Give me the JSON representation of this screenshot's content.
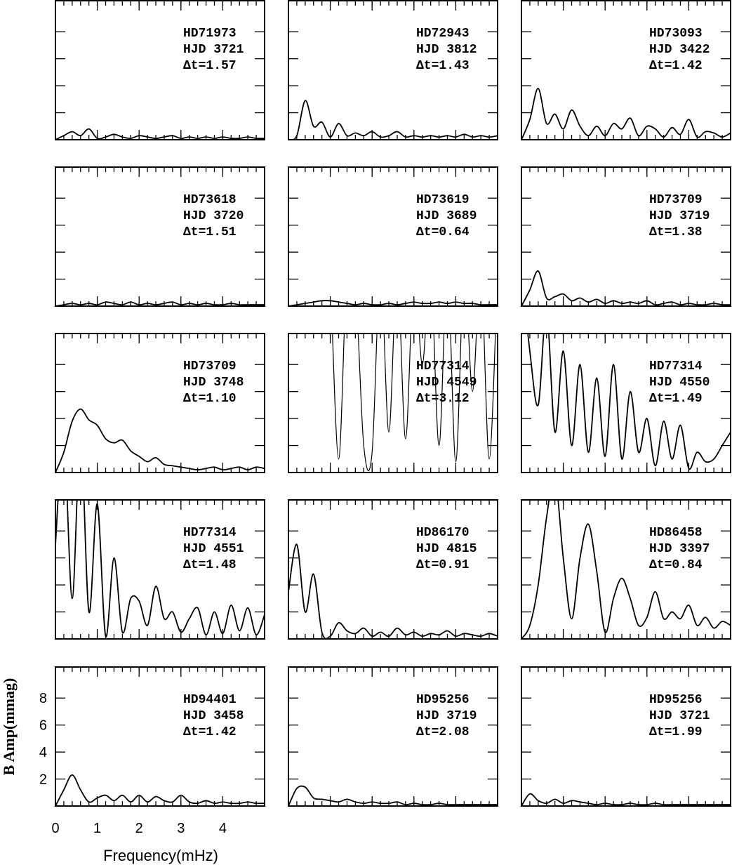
{
  "chart_data": [
    {
      "type": "line",
      "text": [
        "HD71973",
        "HJD 3721",
        "Δt=1.57"
      ],
      "xlim": [
        0,
        5
      ],
      "ylim": [
        0,
        10.3
      ],
      "x": [
        0,
        0.2,
        0.4,
        0.6,
        0.8,
        1,
        1.2,
        1.4,
        1.6,
        1.8,
        2,
        2.2,
        2.4,
        2.6,
        2.8,
        3,
        3.2,
        3.4,
        3.6,
        3.8,
        4,
        4.2,
        4.4,
        4.6,
        4.8,
        5
      ],
      "values": [
        0,
        0.3,
        0.6,
        0.3,
        0.8,
        0.1,
        0.2,
        0.4,
        0.2,
        0.1,
        0.3,
        0.2,
        0.1,
        0.2,
        0.3,
        0.1,
        0.2,
        0.1,
        0.2,
        0.1,
        0.2,
        0.1,
        0.1,
        0.2,
        0.1,
        0.1
      ]
    },
    {
      "type": "line",
      "text": [
        "HD72943",
        "HJD 3812",
        "Δt=1.43"
      ],
      "xlim": [
        0,
        5
      ],
      "ylim": [
        0,
        10.3
      ],
      "x": [
        0,
        0.2,
        0.4,
        0.6,
        0.8,
        1,
        1.2,
        1.4,
        1.6,
        1.8,
        2,
        2.2,
        2.4,
        2.6,
        2.8,
        3,
        3.2,
        3.4,
        3.6,
        3.8,
        4,
        4.2,
        4.4,
        4.6,
        4.8,
        5
      ],
      "values": [
        0,
        0.3,
        2.9,
        1.0,
        1.3,
        0.2,
        1.2,
        0.3,
        0.5,
        0.3,
        0.6,
        0.2,
        0.3,
        0.6,
        0.2,
        0.3,
        0.2,
        0.3,
        0.2,
        0.3,
        0.2,
        0.4,
        0.2,
        0.3,
        0.2,
        0.3
      ]
    },
    {
      "type": "line",
      "text": [
        "HD73093",
        "HJD 3422",
        "Δt=1.42"
      ],
      "xlim": [
        0,
        5
      ],
      "ylim": [
        0,
        10.3
      ],
      "x": [
        0,
        0.2,
        0.4,
        0.6,
        0.8,
        1,
        1.2,
        1.4,
        1.6,
        1.8,
        2,
        2.2,
        2.4,
        2.6,
        2.8,
        3,
        3.2,
        3.4,
        3.6,
        3.8,
        4,
        4.2,
        4.4,
        4.6,
        4.8,
        5
      ],
      "values": [
        0,
        1.5,
        3.8,
        1.2,
        1.9,
        0.8,
        2.2,
        1.0,
        0.3,
        1.0,
        0.3,
        1.2,
        0.8,
        1.6,
        0.3,
        1.0,
        0.8,
        0.2,
        0.9,
        0.4,
        1.5,
        0.2,
        0.6,
        0.5,
        0.2,
        0.5
      ]
    },
    {
      "type": "line",
      "text": [
        "HD73618",
        "HJD 3720",
        "Δt=1.51"
      ],
      "xlim": [
        0,
        5
      ],
      "ylim": [
        0,
        10.3
      ],
      "x": [
        0,
        0.2,
        0.4,
        0.6,
        0.8,
        1,
        1.2,
        1.4,
        1.6,
        1.8,
        2,
        2.2,
        2.4,
        2.6,
        2.8,
        3,
        3.2,
        3.4,
        3.6,
        3.8,
        4,
        4.2,
        4.4,
        4.6,
        4.8,
        5
      ],
      "values": [
        0,
        0.1,
        0.2,
        0.1,
        0.2,
        0.1,
        0.3,
        0.2,
        0.1,
        0.3,
        0.1,
        0.2,
        0.1,
        0.2,
        0.3,
        0.1,
        0.2,
        0.1,
        0.2,
        0.1,
        0.1,
        0.2,
        0.1,
        0.1,
        0.1,
        0.1
      ]
    },
    {
      "type": "line",
      "text": [
        "HD73619",
        "HJD 3689",
        "Δt=0.64"
      ],
      "xlim": [
        0,
        5
      ],
      "ylim": [
        0,
        10.3
      ],
      "x": [
        0,
        0.2,
        0.4,
        0.6,
        0.8,
        1,
        1.2,
        1.4,
        1.6,
        1.8,
        2,
        2.2,
        2.4,
        2.6,
        2.8,
        3,
        3.2,
        3.4,
        3.6,
        3.8,
        4,
        4.2,
        4.4,
        4.6,
        4.8,
        5
      ],
      "values": [
        0,
        0.1,
        0.2,
        0.3,
        0.4,
        0.4,
        0.3,
        0.2,
        0.1,
        0.2,
        0.1,
        0.1,
        0.2,
        0.1,
        0.2,
        0.3,
        0.2,
        0.2,
        0.3,
        0.2,
        0.3,
        0.2,
        0.2,
        0.1,
        0.1,
        0.1
      ]
    },
    {
      "type": "line",
      "text": [
        "HD73709",
        "HJD 3719",
        "Δt=1.38"
      ],
      "xlim": [
        0,
        5
      ],
      "ylim": [
        0,
        10.3
      ],
      "x": [
        0,
        0.2,
        0.4,
        0.6,
        0.8,
        1,
        1.2,
        1.4,
        1.6,
        1.8,
        2,
        2.2,
        2.4,
        2.6,
        2.8,
        3,
        3.2,
        3.4,
        3.6,
        3.8,
        4,
        4.2,
        4.4,
        4.6,
        4.8,
        5
      ],
      "values": [
        0,
        1.2,
        2.6,
        0.6,
        0.7,
        0.9,
        0.4,
        0.6,
        0.3,
        0.5,
        0.2,
        0.4,
        0.2,
        0.3,
        0.2,
        0.4,
        0.1,
        0.2,
        0.3,
        0.1,
        0.2,
        0.1,
        0.1,
        0.2,
        0.1,
        0.1
      ]
    },
    {
      "type": "line",
      "text": [
        "HD73709",
        "HJD 3748",
        "Δt=1.10"
      ],
      "xlim": [
        0,
        5
      ],
      "ylim": [
        0,
        10.3
      ],
      "x": [
        0,
        0.2,
        0.4,
        0.6,
        0.8,
        1,
        1.2,
        1.4,
        1.6,
        1.8,
        2,
        2.2,
        2.4,
        2.6,
        2.8,
        3,
        3.2,
        3.4,
        3.6,
        3.8,
        4,
        4.2,
        4.4,
        4.6,
        4.8,
        5
      ],
      "values": [
        0,
        1.5,
        3.8,
        4.7,
        3.9,
        3.5,
        2.5,
        2.2,
        2.4,
        1.6,
        1.2,
        0.8,
        1.1,
        0.6,
        0.5,
        0.4,
        0.3,
        0.2,
        0.3,
        0.4,
        0.2,
        0.3,
        0.4,
        0.2,
        0.4,
        0.3
      ]
    },
    {
      "type": "line",
      "text": [
        "HD77314",
        "HJD 4549",
        "Δt=3.12"
      ],
      "xlim": [
        0,
        5
      ],
      "ylim": [
        0,
        10.3
      ],
      "x": [
        0,
        0.2,
        0.4,
        0.6,
        0.8,
        1,
        1.2,
        1.4,
        1.6,
        1.8,
        2,
        2.2,
        2.4,
        2.6,
        2.8,
        3,
        3.2,
        3.4,
        3.6,
        3.8,
        4,
        4.2,
        4.4,
        4.6,
        4.8,
        5
      ],
      "values": [
        null,
        null,
        null,
        null,
        null,
        15,
        1.0,
        15,
        14,
        2,
        1.5,
        15,
        3,
        15,
        2.5,
        15,
        8,
        15,
        2,
        15,
        0.8,
        15,
        6,
        15,
        1,
        15
      ]
    },
    {
      "type": "line",
      "text": [
        "HD77314",
        "HJD 4550",
        "Δt=1.49"
      ],
      "xlim": [
        0,
        5
      ],
      "ylim": [
        0,
        10.3
      ],
      "x": [
        0,
        0.2,
        0.4,
        0.6,
        0.8,
        1,
        1.2,
        1.4,
        1.6,
        1.8,
        2,
        2.2,
        2.4,
        2.6,
        2.8,
        3,
        3.2,
        3.4,
        3.6,
        3.8,
        4,
        4.2,
        4.4,
        4.6,
        4.8,
        5
      ],
      "values": [
        15,
        9,
        5,
        12,
        3,
        9,
        2,
        8,
        1.5,
        7,
        1.2,
        8,
        1,
        6,
        1.5,
        4,
        0.5,
        3.8,
        1,
        3.5,
        0.3,
        1.5,
        0.8,
        1,
        2,
        3
      ]
    },
    {
      "type": "line",
      "text": [
        "HD77314",
        "HJD 4551",
        "Δt=1.48"
      ],
      "xlim": [
        0,
        5
      ],
      "ylim": [
        0,
        10.3
      ],
      "x": [
        0,
        0.2,
        0.4,
        0.6,
        0.8,
        1,
        1.2,
        1.4,
        1.6,
        1.8,
        2,
        2.2,
        2.4,
        2.6,
        2.8,
        3,
        3.2,
        3.4,
        3.6,
        3.8,
        4,
        4.2,
        4.4,
        4.6,
        4.8,
        5
      ],
      "values": [
        7,
        15,
        3,
        15,
        2,
        10,
        0.2,
        6,
        0.5,
        3,
        2.8,
        1,
        3.9,
        1.5,
        2,
        0.5,
        1.5,
        2.3,
        0.3,
        2,
        0.4,
        2.5,
        0.6,
        2.3,
        0.3,
        1.8
      ]
    },
    {
      "type": "line",
      "text": [
        "HD86170",
        "HJD 4815",
        "Δt=0.91"
      ],
      "xlim": [
        0,
        5
      ],
      "ylim": [
        0,
        10.3
      ],
      "x": [
        0,
        0.2,
        0.4,
        0.6,
        0.8,
        1,
        1.2,
        1.4,
        1.6,
        1.8,
        2,
        2.2,
        2.4,
        2.6,
        2.8,
        3,
        3.2,
        3.4,
        3.6,
        3.8,
        4,
        4.2,
        4.4,
        4.6,
        4.8,
        5
      ],
      "values": [
        3.5,
        7,
        2,
        4.8,
        0.5,
        0.2,
        1.2,
        0.6,
        0.4,
        0.8,
        0.2,
        0.5,
        0.2,
        0.8,
        0.3,
        0.5,
        0.2,
        0.4,
        0.3,
        0.6,
        0.2,
        0.4,
        0.3,
        0.2,
        0.4,
        0.2
      ]
    },
    {
      "type": "line",
      "text": [
        "HD86458",
        "HJD 3397",
        "Δt=0.84"
      ],
      "xlim": [
        0,
        5
      ],
      "ylim": [
        0,
        10.3
      ],
      "x": [
        0,
        0.2,
        0.4,
        0.6,
        0.8,
        1,
        1.2,
        1.4,
        1.6,
        1.8,
        2,
        2.2,
        2.4,
        2.6,
        2.8,
        3,
        3.2,
        3.4,
        3.6,
        3.8,
        4,
        4.2,
        4.4,
        4.6,
        4.8,
        5
      ],
      "values": [
        0,
        1,
        4,
        9,
        12,
        6,
        1.5,
        6,
        8.5,
        5,
        0.5,
        3,
        4.5,
        3,
        1,
        1.6,
        3.5,
        1.5,
        2,
        1.5,
        2.5,
        1,
        1.6,
        0.8,
        1.3,
        1
      ]
    },
    {
      "type": "line",
      "text": [
        "HD94401",
        "HJD 3458",
        "Δt=1.42"
      ],
      "xlim": [
        0,
        5
      ],
      "ylim": [
        0,
        10.3
      ],
      "xticks": [
        0,
        1,
        2,
        3,
        4
      ],
      "yticks": [
        2,
        4,
        6,
        8
      ],
      "xlabel": "Frequency(mHz)",
      "ylabel": "B Amp(mmag)",
      "x": [
        0,
        0.2,
        0.4,
        0.6,
        0.8,
        1,
        1.2,
        1.4,
        1.6,
        1.8,
        2,
        2.2,
        2.4,
        2.6,
        2.8,
        3,
        3.2,
        3.4,
        3.6,
        3.8,
        4,
        4.2,
        4.4,
        4.6,
        4.8,
        5
      ],
      "values": [
        0,
        1.2,
        2.3,
        1.2,
        0.3,
        0.6,
        0.8,
        0.4,
        0.8,
        0.3,
        0.8,
        0.3,
        0.7,
        0.4,
        0.3,
        0.8,
        0.3,
        0.2,
        0.4,
        0.2,
        0.3,
        0.2,
        0.2,
        0.3,
        0.2,
        0.2
      ]
    },
    {
      "type": "line",
      "text": [
        "HD95256",
        "HJD 3719",
        "Δt=2.08"
      ],
      "xlim": [
        0,
        5
      ],
      "ylim": [
        0,
        10.3
      ],
      "x": [
        0,
        0.2,
        0.4,
        0.6,
        0.8,
        1,
        1.2,
        1.4,
        1.6,
        1.8,
        2,
        2.2,
        2.4,
        2.6,
        2.8,
        3,
        3.2,
        3.4,
        3.6,
        3.8,
        4,
        4.2,
        4.4,
        4.6,
        4.8,
        5
      ],
      "values": [
        0,
        1.3,
        1.4,
        0.6,
        0.5,
        0.4,
        0.3,
        0.5,
        0.3,
        0.2,
        0.3,
        0.2,
        0.2,
        0.3,
        0.1,
        0.2,
        0.1,
        0.1,
        0.2,
        0.1,
        0.1,
        0.1,
        0.1,
        0.1,
        0.1,
        0.1
      ]
    },
    {
      "type": "line",
      "text": [
        "HD95256",
        "HJD 3721",
        "Δt=1.99"
      ],
      "xlim": [
        0,
        5
      ],
      "ylim": [
        0,
        10.3
      ],
      "x": [
        0,
        0.2,
        0.4,
        0.6,
        0.8,
        1,
        1.2,
        1.4,
        1.6,
        1.8,
        2,
        2.2,
        2.4,
        2.6,
        2.8,
        3,
        3.2,
        3.4,
        3.6,
        3.8,
        4,
        4.2,
        4.4,
        4.6,
        4.8,
        5
      ],
      "values": [
        0,
        0.9,
        0.4,
        0.2,
        0.5,
        0.2,
        0.4,
        0.3,
        0.2,
        0.1,
        0.2,
        0.1,
        0.1,
        0.2,
        0.1,
        0.1,
        0.2,
        0.1,
        0.1,
        0.1,
        0.1,
        0.1,
        0.1,
        0.1,
        0.1,
        0.1
      ]
    }
  ]
}
